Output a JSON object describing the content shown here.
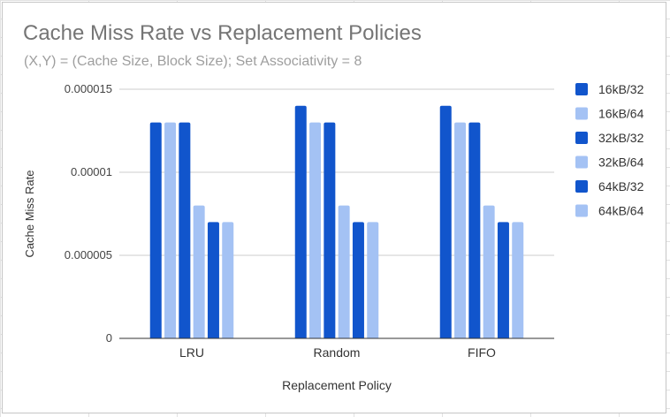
{
  "chart_data": {
    "type": "bar",
    "title": "Cache Miss Rate vs Replacement Policies",
    "subtitle": "(X,Y) = (Cache Size, Block Size); Set Associativity = 8",
    "xlabel": "Replacement Policy",
    "ylabel": "Cache Miss Rate",
    "categories": [
      "LRU",
      "Random",
      "FIFO"
    ],
    "ylim": [
      0,
      1.5e-05
    ],
    "yticks": [
      0,
      5e-06,
      1e-05,
      1.5e-05
    ],
    "ytick_labels": [
      "0",
      "0.000005",
      "0.00001",
      "0.000015"
    ],
    "grid": "horizontal",
    "legend_position": "right",
    "series": [
      {
        "name": "16kB/32",
        "values": [
          1.3e-05,
          1.4e-05,
          1.4e-05
        ],
        "color": "#1155cc"
      },
      {
        "name": "16kB/64",
        "values": [
          1.3e-05,
          1.3e-05,
          1.3e-05
        ],
        "color": "#a4c2f4"
      },
      {
        "name": "32kB/32",
        "values": [
          1.3e-05,
          1.3e-05,
          1.3e-05
        ],
        "color": "#1155cc"
      },
      {
        "name": "32kB/64",
        "values": [
          8e-06,
          8e-06,
          8e-06
        ],
        "color": "#a4c2f4"
      },
      {
        "name": "64kB/32",
        "values": [
          7e-06,
          7e-06,
          7e-06
        ],
        "color": "#1155cc"
      },
      {
        "name": "64kB/64",
        "values": [
          7e-06,
          7e-06,
          7e-06
        ],
        "color": "#a4c2f4"
      }
    ]
  }
}
